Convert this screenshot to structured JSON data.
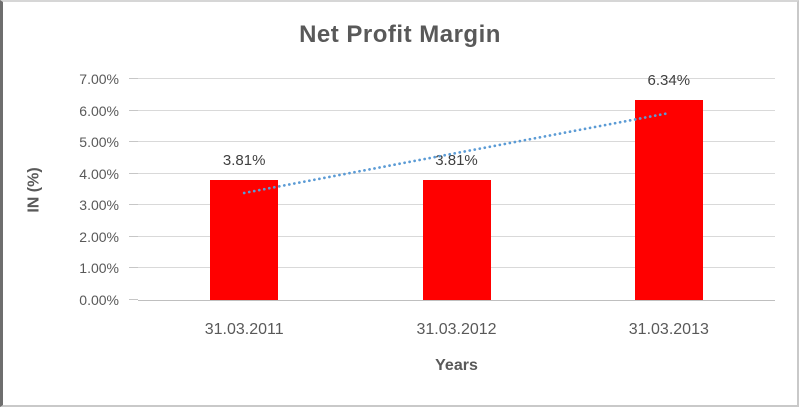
{
  "chart_data": {
    "type": "bar",
    "title": "Net Profit Margin",
    "xlabel": "Years",
    "ylabel": "IN (%)",
    "categories": [
      "31.03.2011",
      "31.03.2012",
      "31.03.2013"
    ],
    "values": [
      3.81,
      3.81,
      6.34
    ],
    "data_labels": [
      "3.81%",
      "3.81%",
      "6.34%"
    ],
    "ylim": [
      0,
      7
    ],
    "ytick_step": 1,
    "ytick_labels": [
      "0.00%",
      "1.00%",
      "2.00%",
      "3.00%",
      "4.00%",
      "5.00%",
      "6.00%",
      "7.00%"
    ],
    "grid": true,
    "legend": "none",
    "bar_color": "#FF0000",
    "gridline_color": "#d9d9d9",
    "text_color": "#595959",
    "trendline": {
      "type": "linear",
      "style": "dotted",
      "color": "#5B9BD5",
      "start_pct": 3.39,
      "end_pct": 5.92
    }
  }
}
